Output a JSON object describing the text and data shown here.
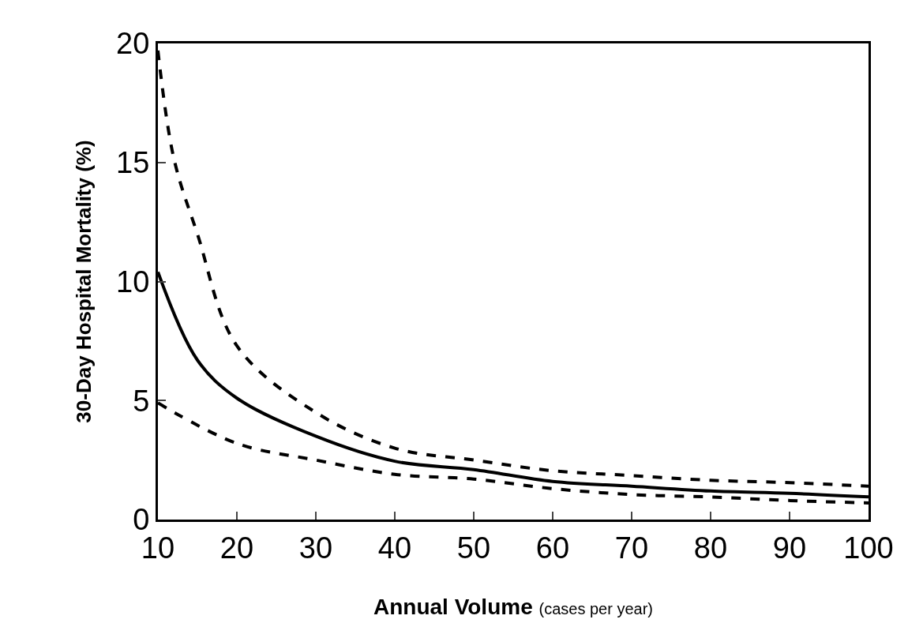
{
  "chart_data": {
    "type": "line",
    "xlabel": "Annual Volume (cases per year)",
    "ylabel": "30-Day Hospital Mortality (%)",
    "series": [
      {
        "color": "#000000",
        "line_style": "dashed",
        "x": [
          10,
          12,
          15,
          20,
          30,
          40,
          50,
          60,
          70,
          80,
          90,
          100
        ],
        "values": [
          19.7,
          15.2,
          12.0,
          7.3,
          4.5,
          3.0,
          2.5,
          2.05,
          1.85,
          1.65,
          1.55,
          1.4
        ]
      },
      {
        "color": "#000000",
        "line_style": "solid",
        "x": [
          10,
          15,
          20,
          30,
          40,
          50,
          60,
          70,
          80,
          90,
          100
        ],
        "values": [
          10.4,
          6.7,
          5.1,
          3.5,
          2.45,
          2.1,
          1.6,
          1.4,
          1.2,
          1.1,
          0.95
        ]
      },
      {
        "color": "#000000",
        "line_style": "dashed",
        "x": [
          10,
          20,
          30,
          40,
          50,
          60,
          70,
          80,
          90,
          100
        ],
        "values": [
          4.9,
          3.2,
          2.5,
          1.9,
          1.7,
          1.3,
          1.05,
          0.95,
          0.8,
          0.7
        ]
      }
    ],
    "xlim": [
      10,
      100
    ],
    "xticks": [
      10,
      20,
      30,
      40,
      50,
      60,
      70,
      80,
      90,
      100
    ],
    "ylim": [
      0,
      20
    ],
    "yticks": [
      0,
      5,
      10,
      15,
      20
    ],
    "grid": false,
    "marker": "none"
  }
}
